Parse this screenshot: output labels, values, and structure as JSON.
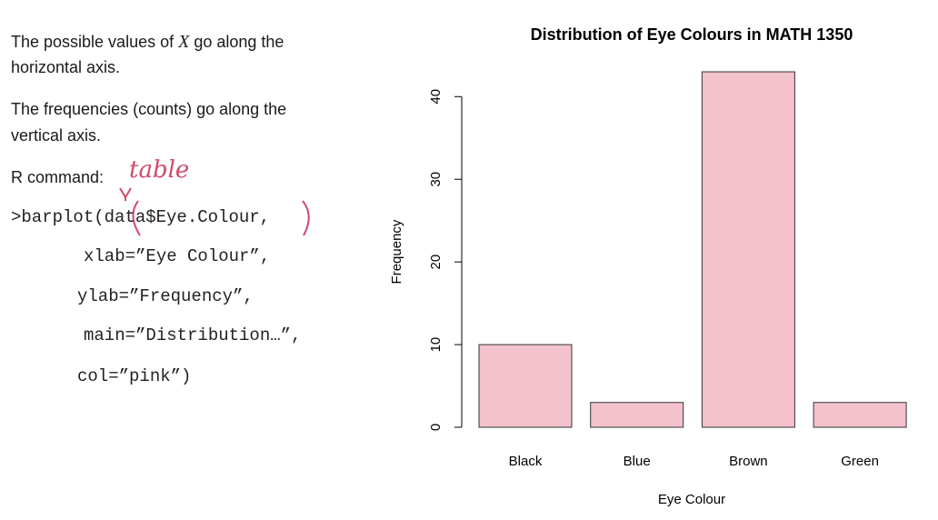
{
  "notes": {
    "line1_pre": "The possible values of ",
    "line1_var": "X",
    "line1_post": " go along the",
    "line2": "horizontal axis.",
    "line3": "The frequencies (counts) go along the",
    "line4": "vertical axis.",
    "r_command_label": "R command:",
    "handwritten_table": "table",
    "cmd_barplot": ">barplot(data$Eye.Colour,",
    "cmd_xlab": "xlab=”Eye Colour”,",
    "cmd_ylab": "ylab=”Frequency”,",
    "cmd_main": "main=”Distribution…”,",
    "cmd_col": "col=”pink”)"
  },
  "chart_data": {
    "type": "bar",
    "title": "Distribution of Eye Colours in MATH 1350",
    "xlabel": "Eye Colour",
    "ylabel": "Frequency",
    "categories": [
      "Black",
      "Blue",
      "Brown",
      "Green"
    ],
    "values": [
      10,
      3,
      43,
      3
    ],
    "yticks": [
      0,
      10,
      20,
      30,
      40
    ],
    "ylim": [
      0,
      43
    ],
    "bar_color": "#f4c2cc",
    "grid": false,
    "legend": "none"
  },
  "colors": {
    "handwriting": "#d04a6a",
    "bar_fill": "#f4c2cc",
    "bar_stroke": "#333333"
  }
}
